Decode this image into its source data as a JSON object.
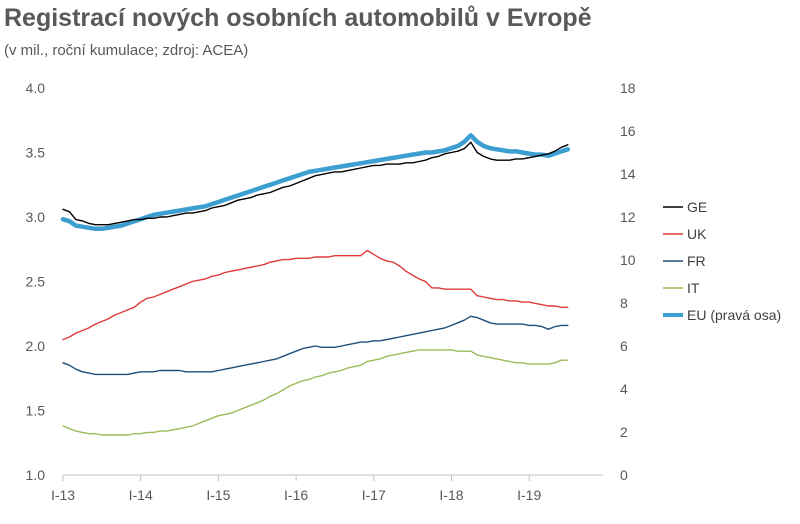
{
  "header": {
    "title": "Registrací nových osobních automobilů v Evropě",
    "subtitle": "(v mil., roční kumulace; zdroj: ACEA)"
  },
  "chart_data": {
    "type": "line",
    "title": "Registrací nových osobních automobilů v Evropě",
    "subtitle": "(v mil., roční kumulace; zdroj: ACEA)",
    "x_start": 2013.0,
    "x_step": 0.0833,
    "xlim": [
      2013.0,
      2019.95
    ],
    "x_ticks": [
      2013,
      2014,
      2015,
      2016,
      2017,
      2018,
      2019
    ],
    "x_tick_labels": [
      "I-13",
      "I-14",
      "I-15",
      "I-16",
      "I-17",
      "I-18",
      "I-19"
    ],
    "ylim_left": [
      1.0,
      4.0
    ],
    "y_ticks_left": [
      "1.0",
      "1.5",
      "2.0",
      "2.5",
      "3.0",
      "3.5",
      "4.0"
    ],
    "ylim_right": [
      0,
      18
    ],
    "y_ticks_right": [
      "0",
      "2",
      "4",
      "6",
      "8",
      "10",
      "12",
      "14",
      "16",
      "18"
    ],
    "legend_position": "right",
    "series": [
      {
        "name": "GE",
        "axis": "left",
        "color": "#000000",
        "width": 1.4,
        "values": [
          3.06,
          3.04,
          2.98,
          2.97,
          2.95,
          2.94,
          2.94,
          2.94,
          2.95,
          2.96,
          2.97,
          2.98,
          2.98,
          2.99,
          2.99,
          3.0,
          3.0,
          3.01,
          3.02,
          3.03,
          3.03,
          3.04,
          3.05,
          3.07,
          3.08,
          3.09,
          3.11,
          3.13,
          3.14,
          3.15,
          3.17,
          3.18,
          3.19,
          3.21,
          3.23,
          3.24,
          3.26,
          3.28,
          3.3,
          3.32,
          3.33,
          3.34,
          3.35,
          3.35,
          3.36,
          3.37,
          3.38,
          3.39,
          3.4,
          3.4,
          3.41,
          3.41,
          3.41,
          3.42,
          3.42,
          3.43,
          3.44,
          3.46,
          3.47,
          3.49,
          3.5,
          3.51,
          3.53,
          3.58,
          3.5,
          3.47,
          3.45,
          3.44,
          3.44,
          3.44,
          3.45,
          3.45,
          3.46,
          3.47,
          3.48,
          3.49,
          3.51,
          3.54,
          3.56
        ]
      },
      {
        "name": "UK",
        "axis": "left",
        "color": "#e03a3a",
        "width": 1.4,
        "values": [
          2.05,
          2.07,
          2.1,
          2.12,
          2.14,
          2.17,
          2.19,
          2.21,
          2.24,
          2.26,
          2.28,
          2.3,
          2.34,
          2.37,
          2.38,
          2.4,
          2.42,
          2.44,
          2.46,
          2.48,
          2.5,
          2.51,
          2.52,
          2.54,
          2.55,
          2.57,
          2.58,
          2.59,
          2.6,
          2.61,
          2.62,
          2.63,
          2.65,
          2.66,
          2.67,
          2.67,
          2.68,
          2.68,
          2.68,
          2.69,
          2.69,
          2.69,
          2.7,
          2.7,
          2.7,
          2.7,
          2.7,
          2.74,
          2.71,
          2.68,
          2.66,
          2.65,
          2.62,
          2.58,
          2.55,
          2.52,
          2.5,
          2.45,
          2.45,
          2.44,
          2.44,
          2.44,
          2.44,
          2.44,
          2.39,
          2.38,
          2.37,
          2.36,
          2.36,
          2.35,
          2.35,
          2.34,
          2.34,
          2.33,
          2.32,
          2.31,
          2.31,
          2.3,
          2.3
        ]
      },
      {
        "name": "FR",
        "axis": "left",
        "color": "#1f4e79",
        "width": 1.4,
        "values": [
          1.87,
          1.85,
          1.82,
          1.8,
          1.79,
          1.78,
          1.78,
          1.78,
          1.78,
          1.78,
          1.78,
          1.79,
          1.8,
          1.8,
          1.8,
          1.81,
          1.81,
          1.81,
          1.81,
          1.8,
          1.8,
          1.8,
          1.8,
          1.8,
          1.81,
          1.82,
          1.83,
          1.84,
          1.85,
          1.86,
          1.87,
          1.88,
          1.89,
          1.9,
          1.92,
          1.94,
          1.96,
          1.98,
          1.99,
          2.0,
          1.99,
          1.99,
          1.99,
          2.0,
          2.01,
          2.02,
          2.03,
          2.03,
          2.04,
          2.04,
          2.05,
          2.06,
          2.07,
          2.08,
          2.09,
          2.1,
          2.11,
          2.12,
          2.13,
          2.14,
          2.16,
          2.18,
          2.2,
          2.23,
          2.22,
          2.2,
          2.18,
          2.17,
          2.17,
          2.17,
          2.17,
          2.17,
          2.16,
          2.16,
          2.15,
          2.13,
          2.15,
          2.16,
          2.16
        ]
      },
      {
        "name": "IT",
        "axis": "left",
        "color": "#9bbb59",
        "width": 1.4,
        "values": [
          1.38,
          1.36,
          1.34,
          1.33,
          1.32,
          1.32,
          1.31,
          1.31,
          1.31,
          1.31,
          1.31,
          1.32,
          1.32,
          1.33,
          1.33,
          1.34,
          1.34,
          1.35,
          1.36,
          1.37,
          1.38,
          1.4,
          1.42,
          1.44,
          1.46,
          1.47,
          1.48,
          1.5,
          1.52,
          1.54,
          1.56,
          1.58,
          1.61,
          1.63,
          1.66,
          1.69,
          1.71,
          1.73,
          1.74,
          1.76,
          1.77,
          1.79,
          1.8,
          1.81,
          1.83,
          1.84,
          1.85,
          1.88,
          1.89,
          1.9,
          1.92,
          1.93,
          1.94,
          1.95,
          1.96,
          1.97,
          1.97,
          1.97,
          1.97,
          1.97,
          1.97,
          1.96,
          1.96,
          1.96,
          1.93,
          1.92,
          1.91,
          1.9,
          1.89,
          1.88,
          1.87,
          1.87,
          1.86,
          1.86,
          1.86,
          1.86,
          1.87,
          1.89,
          1.89
        ]
      },
      {
        "name": "EU (pravá osa)",
        "axis": "right",
        "color": "#3d9fd1",
        "width": 4.5,
        "values": [
          11.9,
          11.8,
          11.6,
          11.55,
          11.5,
          11.45,
          11.45,
          11.5,
          11.55,
          11.6,
          11.7,
          11.8,
          11.9,
          12.0,
          12.1,
          12.15,
          12.2,
          12.25,
          12.3,
          12.35,
          12.4,
          12.45,
          12.5,
          12.6,
          12.7,
          12.8,
          12.9,
          13.0,
          13.1,
          13.2,
          13.3,
          13.4,
          13.5,
          13.6,
          13.7,
          13.8,
          13.9,
          14.0,
          14.1,
          14.15,
          14.2,
          14.25,
          14.3,
          14.35,
          14.4,
          14.45,
          14.5,
          14.55,
          14.6,
          14.65,
          14.7,
          14.75,
          14.8,
          14.85,
          14.9,
          14.95,
          15.0,
          15.0,
          15.05,
          15.1,
          15.2,
          15.3,
          15.5,
          15.8,
          15.5,
          15.3,
          15.2,
          15.15,
          15.1,
          15.05,
          15.05,
          15.0,
          14.95,
          14.9,
          14.9,
          14.85,
          14.95,
          15.05,
          15.15
        ]
      }
    ]
  }
}
